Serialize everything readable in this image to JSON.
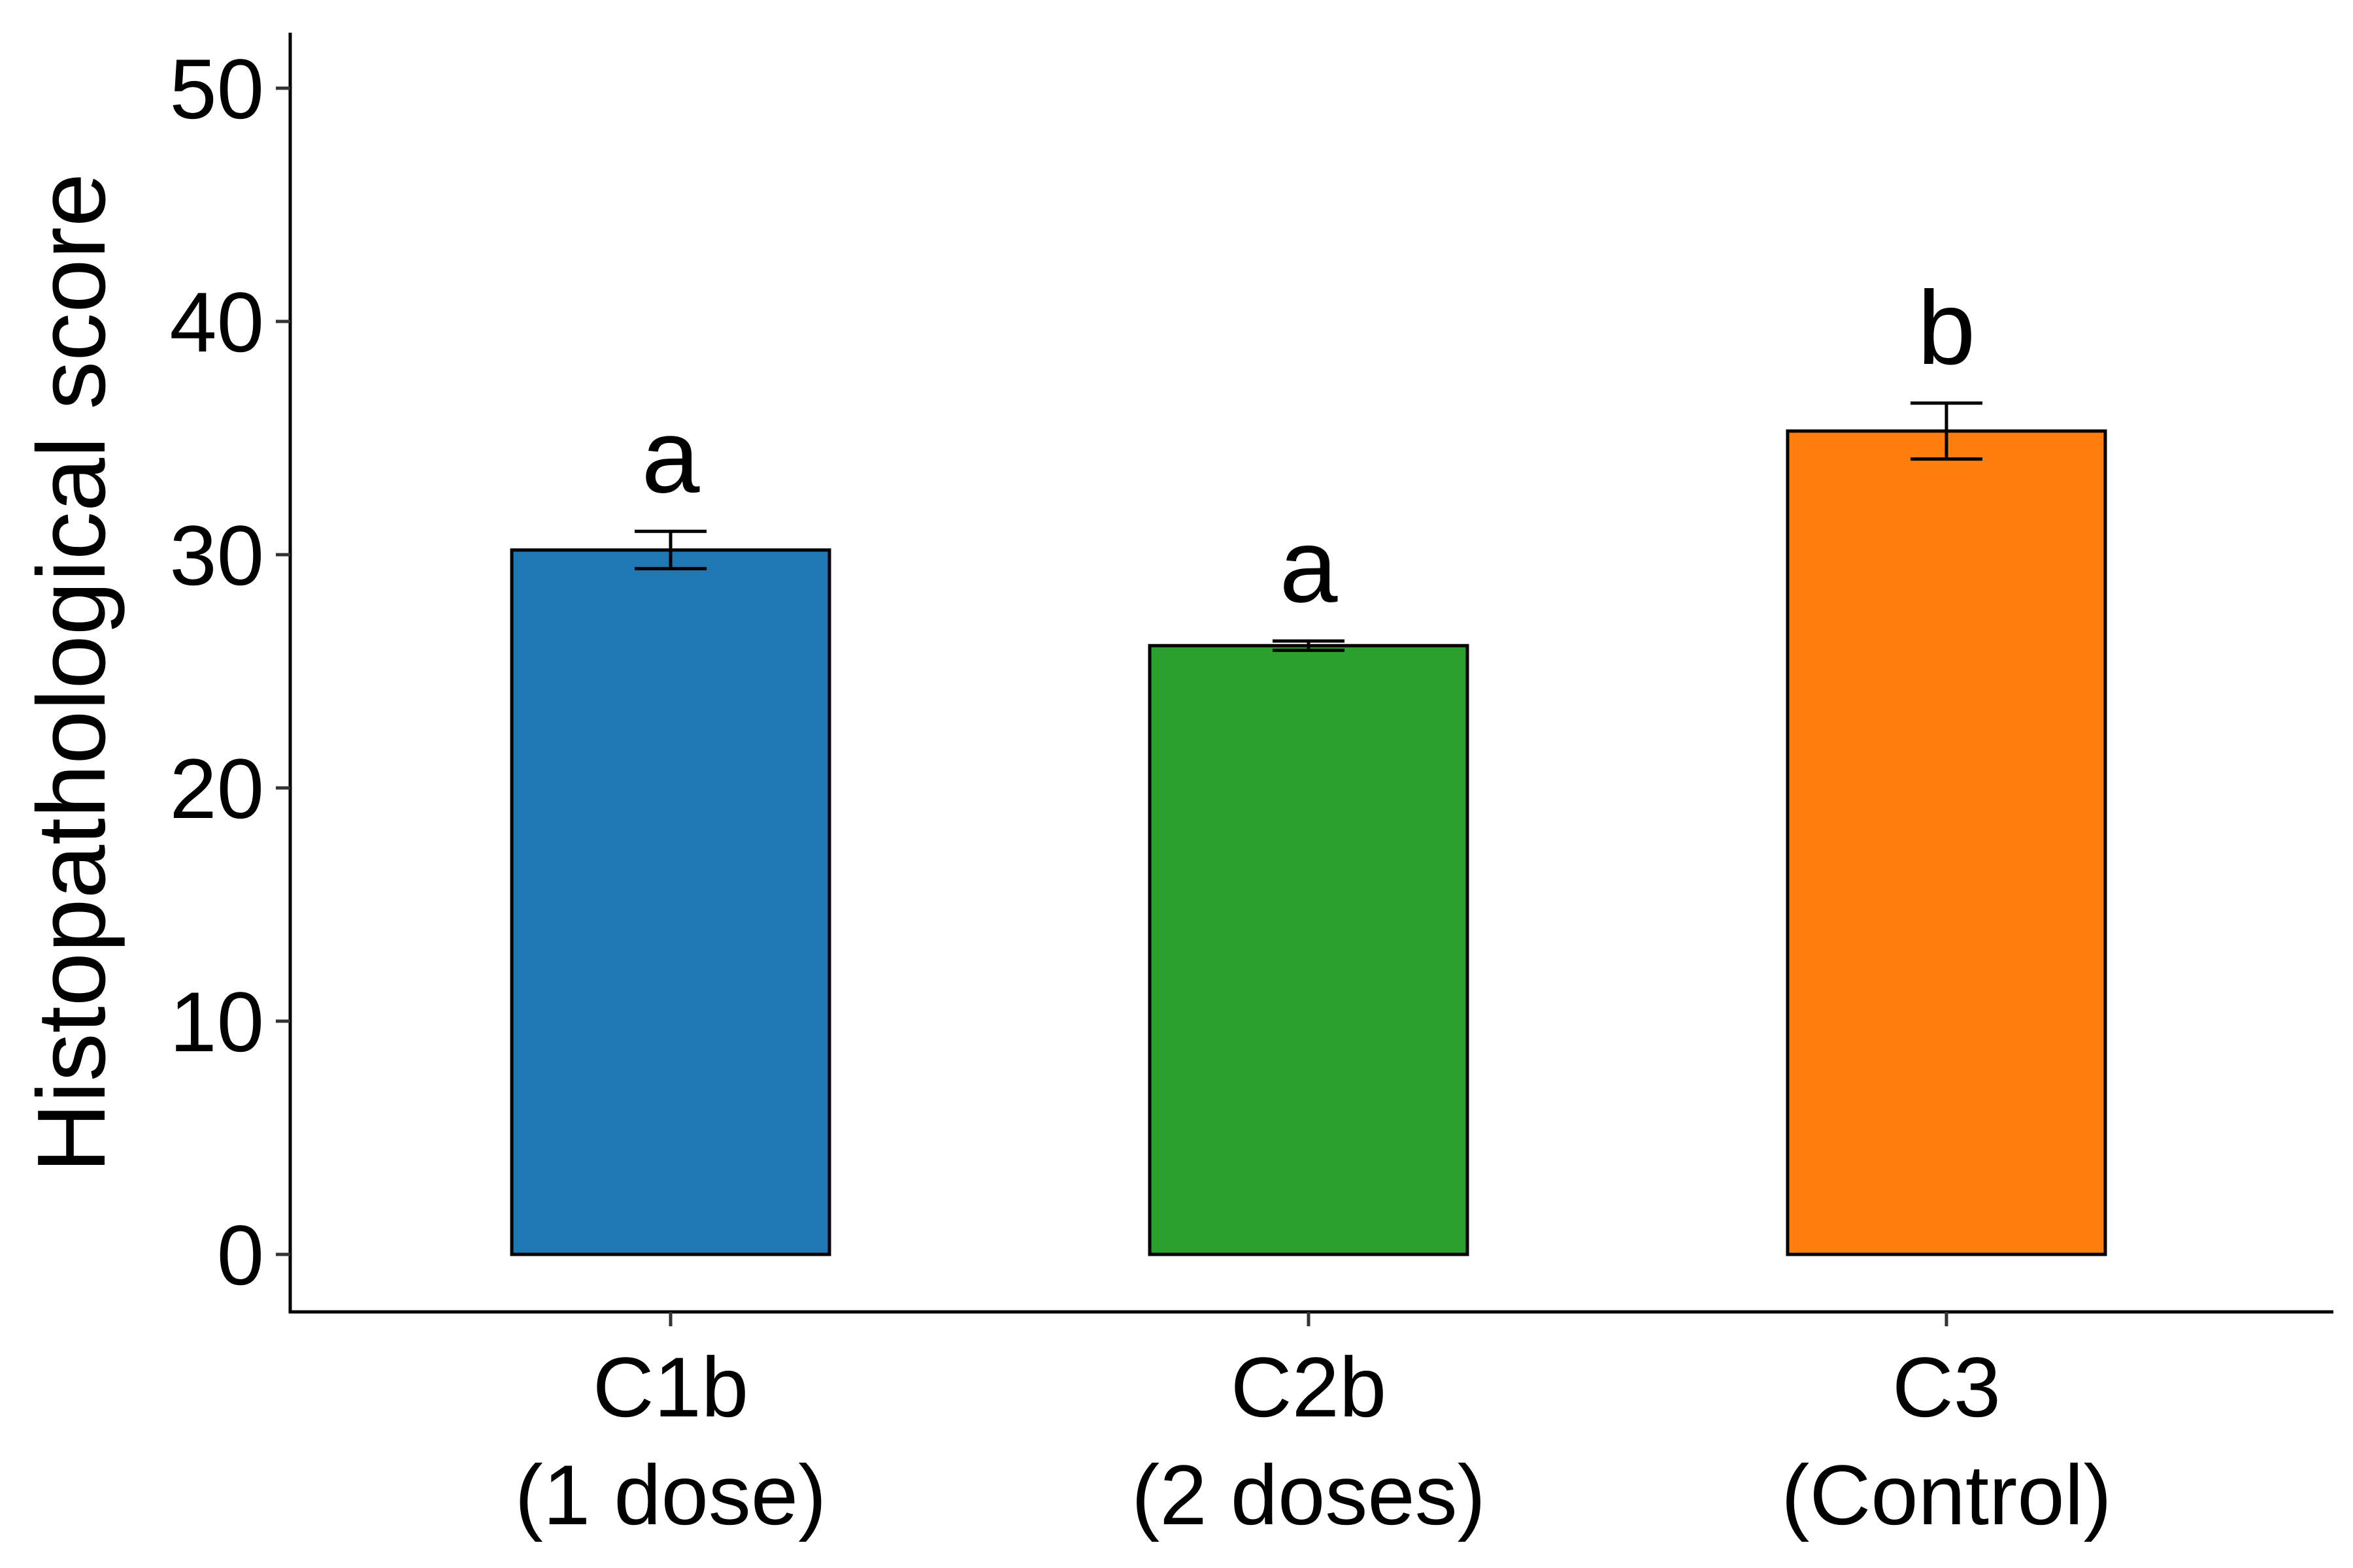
{
  "chart_data": {
    "type": "bar",
    "title": "",
    "xlabel": "",
    "ylabel": "Histopathological score",
    "ylim": [
      0,
      52
    ],
    "yticks": [
      0,
      10,
      20,
      30,
      40,
      50
    ],
    "grid": false,
    "legend": "none",
    "categories": [
      {
        "line1": "C1b",
        "line2": "(1 dose)"
      },
      {
        "line1": "C2b",
        "line2": "(2 doses)"
      },
      {
        "line1": "C3",
        "line2": "(Control)"
      }
    ],
    "values": [
      30.2,
      26.1,
      35.3
    ],
    "error": [
      0.8,
      0.2,
      1.2
    ],
    "significance": [
      "a",
      "a",
      "b"
    ],
    "colors": [
      "#1f77b4",
      "#2ca02c",
      "#ff7f0e"
    ]
  }
}
